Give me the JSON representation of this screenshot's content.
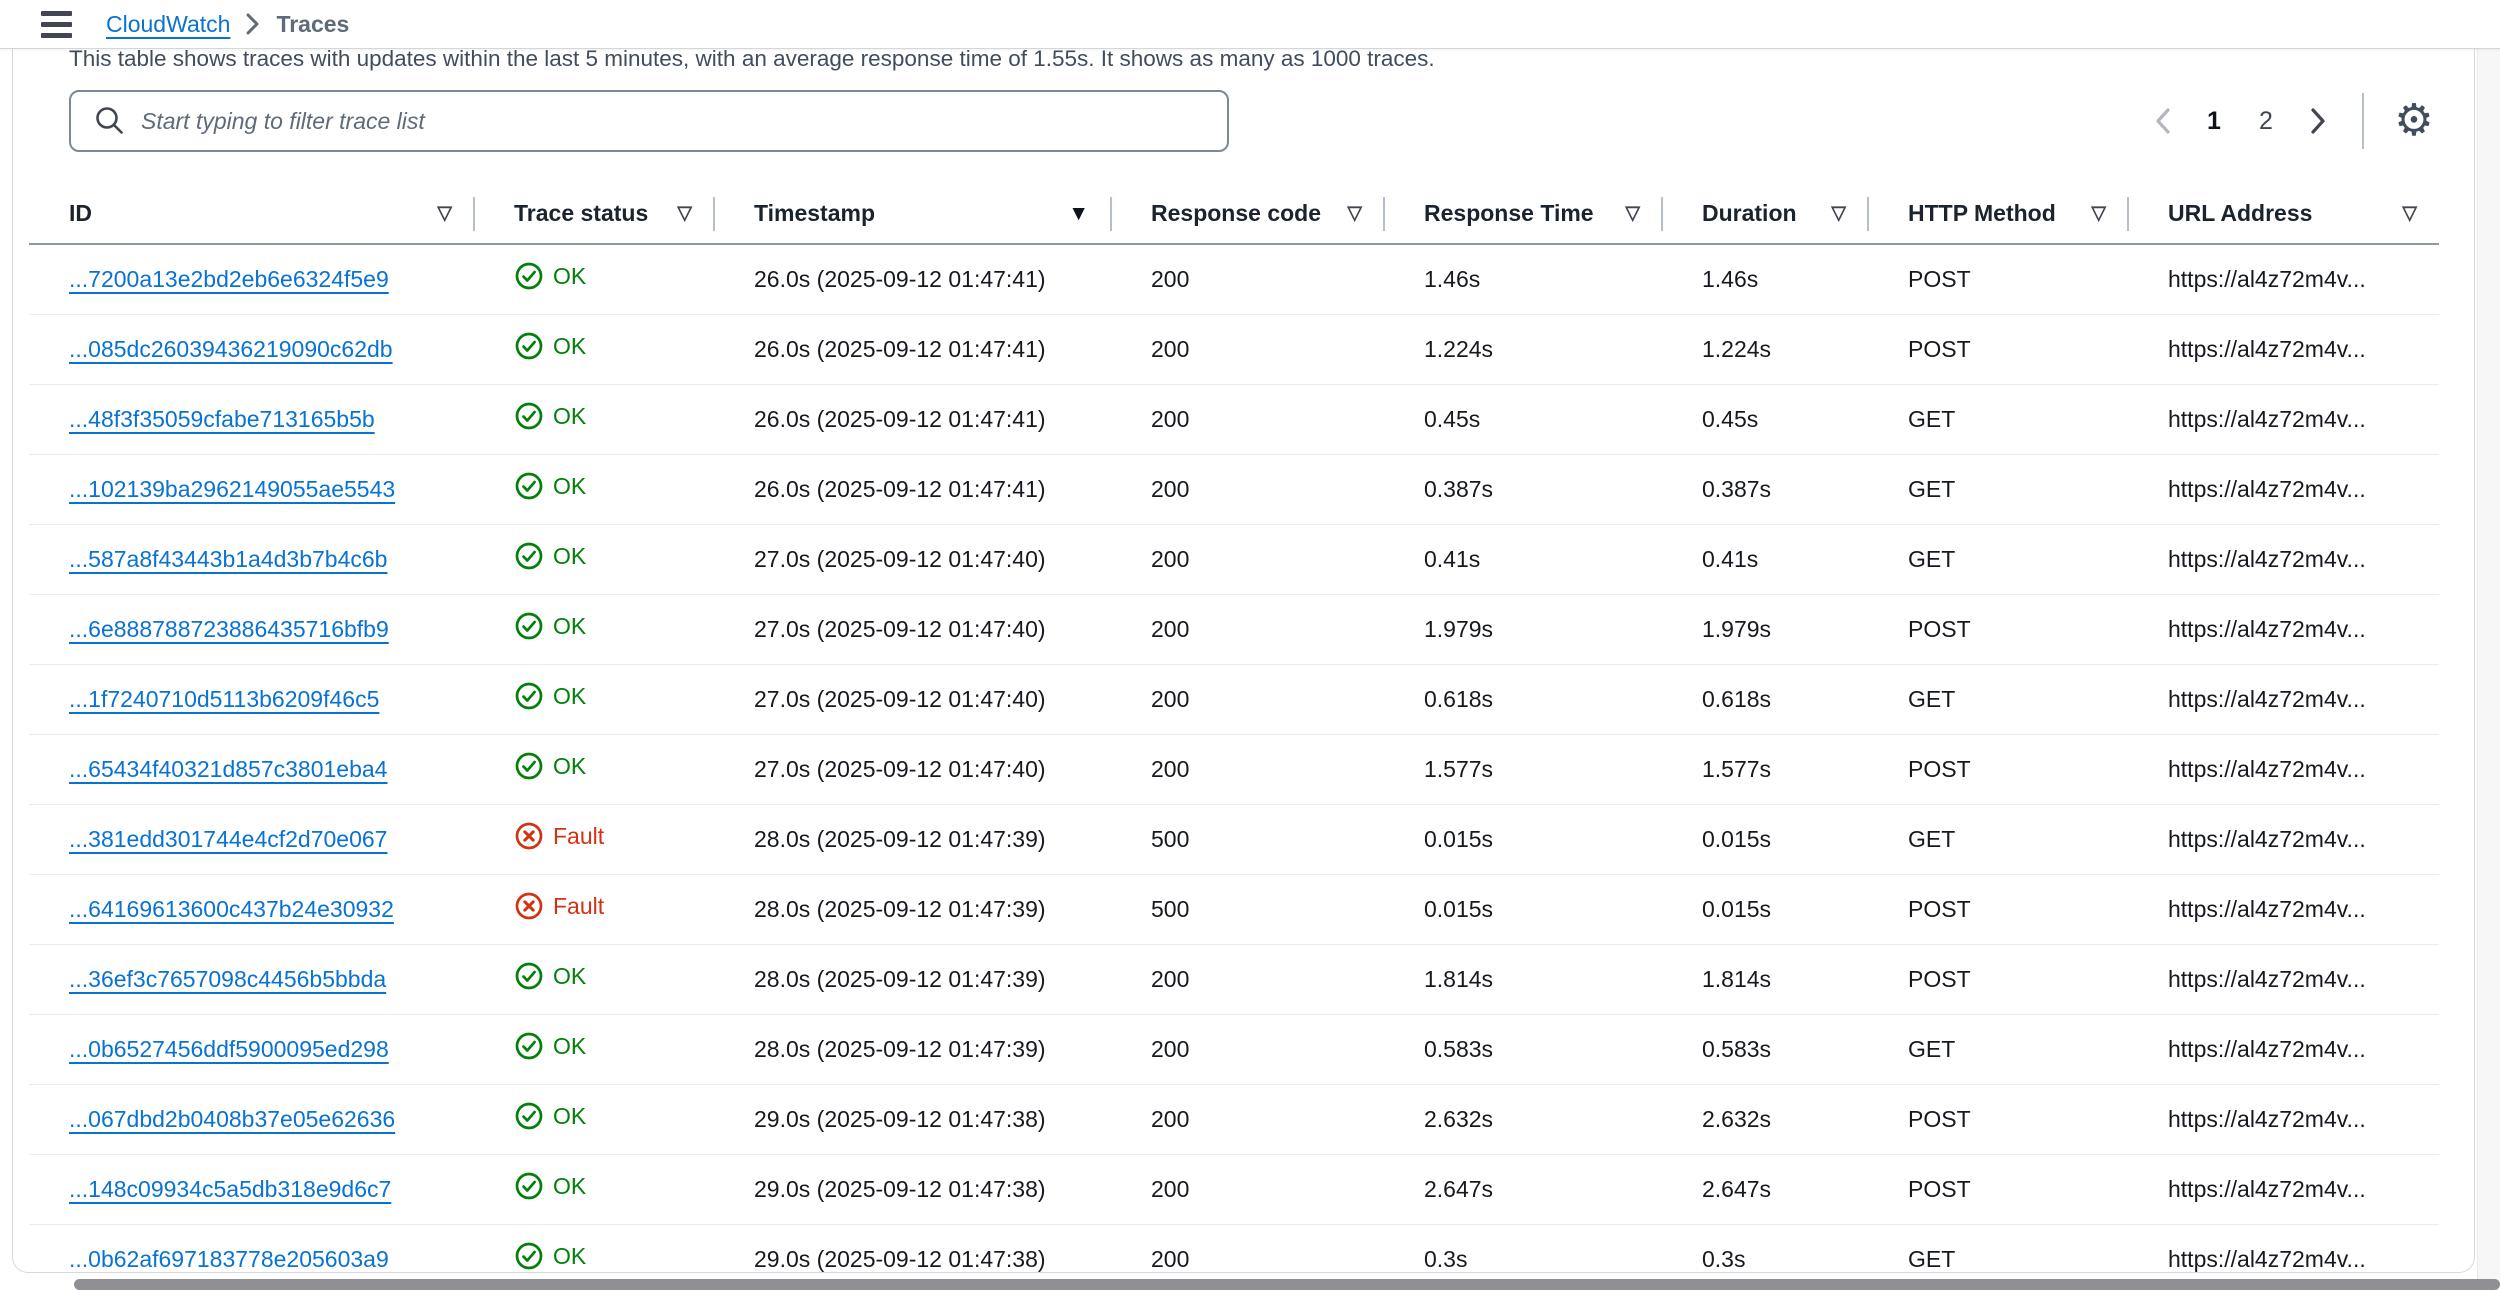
{
  "breadcrumb": {
    "items": [
      {
        "label": "CloudWatch",
        "type": "link"
      },
      {
        "label": "Traces",
        "type": "current"
      }
    ]
  },
  "summary_text": "This table shows traces with updates within the last 5 minutes, with an average response time of 1.55s. It shows as many as 1000 traces.",
  "filter": {
    "placeholder": "Start typing to filter trace list",
    "value": "",
    "icon": "search-icon"
  },
  "pagination": {
    "prev_icon": "chevron-left-icon",
    "prev_enabled": false,
    "pages": [
      "1",
      "2"
    ],
    "current_page": "1",
    "next_icon": "chevron-right-icon",
    "next_enabled": true
  },
  "settings_icon": "gear-icon",
  "table": {
    "columns": [
      {
        "label": "ID",
        "sort": "sortable"
      },
      {
        "label": "Trace status",
        "sort": "sortable"
      },
      {
        "label": "Timestamp",
        "sort": "sorted-desc"
      },
      {
        "label": "Response code",
        "sort": "sortable"
      },
      {
        "label": "Response Time",
        "sort": "sortable"
      },
      {
        "label": "Duration",
        "sort": "sortable"
      },
      {
        "label": "HTTP Method",
        "sort": "sortable"
      },
      {
        "label": "URL Address",
        "sort": "sortable"
      }
    ],
    "rows": [
      {
        "id": "...7200a13e2bd2eb6e6324f5e9",
        "status": "OK",
        "status_icon": "check-circle-icon",
        "timestamp": "26.0s (2025-09-12 01:47:41)",
        "response_code": "200",
        "response_time": "1.46s",
        "duration": "1.46s",
        "http_method": "POST",
        "url": "https://al4z72m4v..."
      },
      {
        "id": "...085dc26039436219090c62db",
        "status": "OK",
        "status_icon": "check-circle-icon",
        "timestamp": "26.0s (2025-09-12 01:47:41)",
        "response_code": "200",
        "response_time": "1.224s",
        "duration": "1.224s",
        "http_method": "POST",
        "url": "https://al4z72m4v..."
      },
      {
        "id": "...48f3f35059cfabe713165b5b",
        "status": "OK",
        "status_icon": "check-circle-icon",
        "timestamp": "26.0s (2025-09-12 01:47:41)",
        "response_code": "200",
        "response_time": "0.45s",
        "duration": "0.45s",
        "http_method": "GET",
        "url": "https://al4z72m4v..."
      },
      {
        "id": "...102139ba2962149055ae5543",
        "status": "OK",
        "status_icon": "check-circle-icon",
        "timestamp": "26.0s (2025-09-12 01:47:41)",
        "response_code": "200",
        "response_time": "0.387s",
        "duration": "0.387s",
        "http_method": "GET",
        "url": "https://al4z72m4v..."
      },
      {
        "id": "...587a8f43443b1a4d3b7b4c6b",
        "status": "OK",
        "status_icon": "check-circle-icon",
        "timestamp": "27.0s (2025-09-12 01:47:40)",
        "response_code": "200",
        "response_time": "0.41s",
        "duration": "0.41s",
        "http_method": "GET",
        "url": "https://al4z72m4v..."
      },
      {
        "id": "...6e888788723886435716bfb9",
        "status": "OK",
        "status_icon": "check-circle-icon",
        "timestamp": "27.0s (2025-09-12 01:47:40)",
        "response_code": "200",
        "response_time": "1.979s",
        "duration": "1.979s",
        "http_method": "POST",
        "url": "https://al4z72m4v..."
      },
      {
        "id": "...1f7240710d5113b6209f46c5",
        "status": "OK",
        "status_icon": "check-circle-icon",
        "timestamp": "27.0s (2025-09-12 01:47:40)",
        "response_code": "200",
        "response_time": "0.618s",
        "duration": "0.618s",
        "http_method": "GET",
        "url": "https://al4z72m4v..."
      },
      {
        "id": "...65434f40321d857c3801eba4",
        "status": "OK",
        "status_icon": "check-circle-icon",
        "timestamp": "27.0s (2025-09-12 01:47:40)",
        "response_code": "200",
        "response_time": "1.577s",
        "duration": "1.577s",
        "http_method": "POST",
        "url": "https://al4z72m4v..."
      },
      {
        "id": "...381edd301744e4cf2d70e067",
        "status": "Fault",
        "status_icon": "x-circle-icon",
        "timestamp": "28.0s (2025-09-12 01:47:39)",
        "response_code": "500",
        "response_time": "0.015s",
        "duration": "0.015s",
        "http_method": "GET",
        "url": "https://al4z72m4v..."
      },
      {
        "id": "...64169613600c437b24e30932",
        "status": "Fault",
        "status_icon": "x-circle-icon",
        "timestamp": "28.0s (2025-09-12 01:47:39)",
        "response_code": "500",
        "response_time": "0.015s",
        "duration": "0.015s",
        "http_method": "POST",
        "url": "https://al4z72m4v..."
      },
      {
        "id": "...36ef3c7657098c4456b5bbda",
        "status": "OK",
        "status_icon": "check-circle-icon",
        "timestamp": "28.0s (2025-09-12 01:47:39)",
        "response_code": "200",
        "response_time": "1.814s",
        "duration": "1.814s",
        "http_method": "POST",
        "url": "https://al4z72m4v..."
      },
      {
        "id": "...0b6527456ddf5900095ed298",
        "status": "OK",
        "status_icon": "check-circle-icon",
        "timestamp": "28.0s (2025-09-12 01:47:39)",
        "response_code": "200",
        "response_time": "0.583s",
        "duration": "0.583s",
        "http_method": "GET",
        "url": "https://al4z72m4v..."
      },
      {
        "id": "...067dbd2b0408b37e05e62636",
        "status": "OK",
        "status_icon": "check-circle-icon",
        "timestamp": "29.0s (2025-09-12 01:47:38)",
        "response_code": "200",
        "response_time": "2.632s",
        "duration": "2.632s",
        "http_method": "POST",
        "url": "https://al4z72m4v..."
      },
      {
        "id": "...148c09934c5a5db318e9d6c7",
        "status": "OK",
        "status_icon": "check-circle-icon",
        "timestamp": "29.0s (2025-09-12 01:47:38)",
        "response_code": "200",
        "response_time": "2.647s",
        "duration": "2.647s",
        "http_method": "POST",
        "url": "https://al4z72m4v..."
      },
      {
        "id": "...0b62af697183778e205603a9",
        "status": "OK",
        "status_icon": "check-circle-icon",
        "timestamp": "29.0s (2025-09-12 01:47:38)",
        "response_code": "200",
        "response_time": "0.3s",
        "duration": "0.3s",
        "http_method": "GET",
        "url": "https://al4z72m4v..."
      }
    ]
  },
  "colors": {
    "link_blue": "#0972d3",
    "success_green": "#037f0c",
    "fault_red": "#d13212"
  }
}
